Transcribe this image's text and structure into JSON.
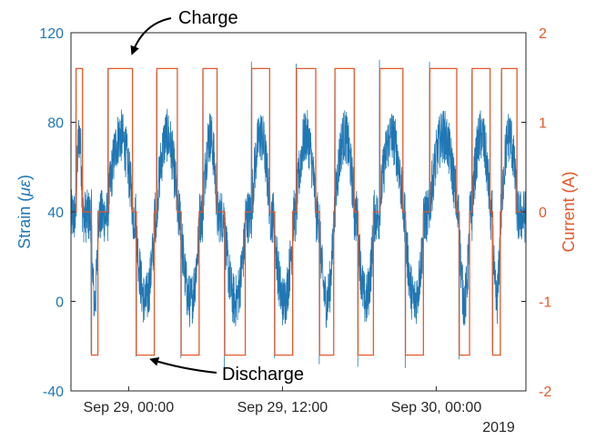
{
  "chart_data": {
    "type": "line",
    "xlabel": "",
    "x_ticks": [
      "Sep 29, 00:00",
      "Sep 29, 12:00",
      "Sep 30, 00:00"
    ],
    "x_year": "2019",
    "x_ticks_hours": [
      0,
      12,
      24
    ],
    "xlim_hours": [
      -4.5,
      31
    ],
    "ylabel_left_prefix": "Strain (",
    "ylabel_left_unit": "με",
    "ylabel_left_suffix": ")",
    "ylabel_right": "Current (A)",
    "ylim_left": [
      -40,
      120
    ],
    "ylim_right": [
      -2,
      2
    ],
    "y_ticks_left": [
      -40,
      0,
      40,
      80,
      120
    ],
    "y_ticks_right": [
      -2,
      -1,
      0,
      1,
      2
    ],
    "colors": {
      "strain": "#1f77b4",
      "current": "#e2592b"
    },
    "annotations": [
      {
        "text": "Charge"
      },
      {
        "text": "Discharge"
      }
    ],
    "series": [
      {
        "axis": "right",
        "shape": "square-wave",
        "levels": [
          -1.6,
          0,
          1.6
        ],
        "charge_windows_hours": [
          [
            -4.1,
            -3.6
          ],
          [
            -1.6,
            0.3
          ],
          [
            2.2,
            3.8
          ],
          [
            5.8,
            6.9
          ],
          [
            9.6,
            11.0
          ],
          [
            13.1,
            14.6
          ],
          [
            16.1,
            17.6
          ],
          [
            19.6,
            21.4
          ],
          [
            23.5,
            25.6
          ],
          [
            26.8,
            28.2
          ],
          [
            29.1,
            30.3
          ]
        ],
        "discharge_windows_hours": [
          [
            -2.9,
            -2.4
          ],
          [
            0.6,
            2.0
          ],
          [
            4.1,
            5.5
          ],
          [
            7.5,
            9.1
          ],
          [
            11.4,
            12.8
          ],
          [
            14.9,
            16.0
          ],
          [
            17.9,
            19.1
          ],
          [
            21.6,
            23.0
          ],
          [
            25.8,
            26.6
          ],
          [
            28.4,
            29.0
          ]
        ]
      },
      {
        "axis": "left",
        "shape": "noisy-cycles",
        "charge_level": 62,
        "charge_peak": 108,
        "discharge_level": 10,
        "discharge_peak": -30
      }
    ]
  }
}
